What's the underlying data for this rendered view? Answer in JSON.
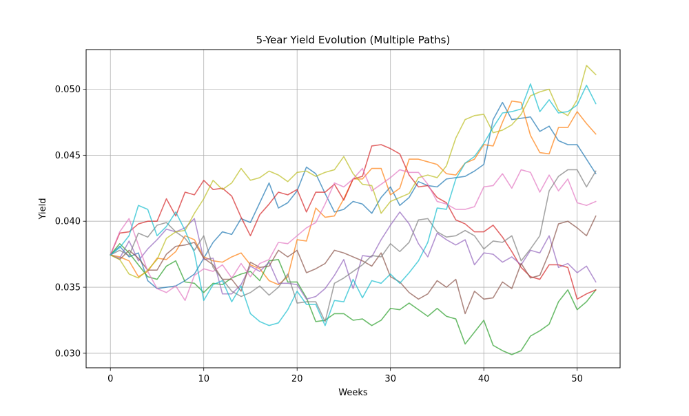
{
  "chart_data": {
    "type": "line",
    "title": "5-Year Yield Evolution (Multiple Paths)",
    "xlabel": "Weeks",
    "ylabel": "Yield",
    "xlim": [
      -2.6,
      54.6
    ],
    "ylim": [
      0.0289,
      0.053
    ],
    "xticks": [
      0,
      10,
      20,
      30,
      40,
      50
    ],
    "yticks": [
      0.03,
      0.035,
      0.04,
      0.045,
      0.05
    ],
    "xtick_labels": [
      "0",
      "10",
      "20",
      "30",
      "40",
      "50"
    ],
    "ytick_labels": [
      "0.030",
      "0.035",
      "0.040",
      "0.045",
      "0.050"
    ],
    "grid": true,
    "legend": "none",
    "line_alpha": 0.7,
    "x": [
      0,
      1,
      2,
      3,
      4,
      5,
      6,
      7,
      8,
      9,
      10,
      11,
      12,
      13,
      14,
      15,
      16,
      17,
      18,
      19,
      20,
      21,
      22,
      23,
      24,
      25,
      26,
      27,
      28,
      29,
      30,
      31,
      32,
      33,
      34,
      35,
      36,
      37,
      38,
      39,
      40,
      41,
      42,
      43,
      44,
      45,
      46,
      47,
      48,
      49,
      50,
      51,
      52
    ],
    "series": [
      {
        "color": "#1f77b4",
        "values": [
          0.03745,
          0.0381,
          0.0373,
          0.0376,
          0.0355,
          0.0349,
          0.035,
          0.0351,
          0.0355,
          0.036,
          0.0372,
          0.0384,
          0.0392,
          0.039,
          0.0402,
          0.0399,
          0.0414,
          0.0429,
          0.041,
          0.0414,
          0.0423,
          0.0441,
          0.0436,
          0.0421,
          0.0407,
          0.0409,
          0.0415,
          0.0413,
          0.0406,
          0.0418,
          0.0426,
          0.0412,
          0.0418,
          0.043,
          0.0427,
          0.0426,
          0.0432,
          0.0433,
          0.0434,
          0.0438,
          0.0443,
          0.0477,
          0.049,
          0.0477,
          0.0478,
          0.0479,
          0.0468,
          0.0472,
          0.0461,
          0.0458,
          0.0458,
          0.0447,
          0.0436
        ]
      },
      {
        "color": "#ff7f0e",
        "values": [
          0.03745,
          0.0373,
          0.037,
          0.0358,
          0.0362,
          0.0372,
          0.0371,
          0.0377,
          0.0389,
          0.0386,
          0.0373,
          0.037,
          0.0369,
          0.0373,
          0.0376,
          0.0367,
          0.0364,
          0.0355,
          0.0352,
          0.0358,
          0.0386,
          0.0385,
          0.041,
          0.0403,
          0.0404,
          0.0417,
          0.0432,
          0.0432,
          0.044,
          0.044,
          0.042,
          0.0425,
          0.0447,
          0.0447,
          0.0445,
          0.0443,
          0.0436,
          0.0435,
          0.0444,
          0.0447,
          0.0458,
          0.0457,
          0.0475,
          0.0491,
          0.049,
          0.0465,
          0.0452,
          0.0451,
          0.0471,
          0.0471,
          0.0483,
          0.0474,
          0.0466
        ]
      },
      {
        "color": "#2ca02c",
        "values": [
          0.03745,
          0.0383,
          0.0376,
          0.0367,
          0.0358,
          0.0356,
          0.0366,
          0.037,
          0.0354,
          0.0353,
          0.0346,
          0.0353,
          0.0352,
          0.0357,
          0.036,
          0.0362,
          0.0355,
          0.037,
          0.0371,
          0.0354,
          0.0354,
          0.0342,
          0.0324,
          0.0325,
          0.033,
          0.033,
          0.0325,
          0.0326,
          0.0321,
          0.0325,
          0.0334,
          0.0333,
          0.0338,
          0.0333,
          0.0328,
          0.0334,
          0.0328,
          0.0326,
          0.0307,
          0.0316,
          0.0325,
          0.0306,
          0.0302,
          0.0299,
          0.0302,
          0.0313,
          0.0317,
          0.0322,
          0.0339,
          0.0348,
          0.0333,
          0.0339,
          0.0348
        ]
      },
      {
        "color": "#d62728",
        "values": [
          0.03745,
          0.0391,
          0.0392,
          0.0398,
          0.04,
          0.04,
          0.0417,
          0.0404,
          0.0422,
          0.042,
          0.0431,
          0.0424,
          0.0425,
          0.0419,
          0.0403,
          0.0389,
          0.0405,
          0.0413,
          0.0422,
          0.042,
          0.0424,
          0.0407,
          0.0422,
          0.0422,
          0.0428,
          0.0416,
          0.0432,
          0.0434,
          0.0457,
          0.0458,
          0.0455,
          0.0451,
          0.0435,
          0.0426,
          0.0427,
          0.0418,
          0.0414,
          0.0401,
          0.0398,
          0.0392,
          0.0392,
          0.0397,
          0.0388,
          0.0377,
          0.0365,
          0.0358,
          0.0356,
          0.0367,
          0.0367,
          0.0365,
          0.0341,
          0.0345,
          0.0348
        ]
      },
      {
        "color": "#9467bd",
        "values": [
          0.03745,
          0.0372,
          0.0385,
          0.037,
          0.0379,
          0.0386,
          0.0394,
          0.0392,
          0.0395,
          0.0402,
          0.0371,
          0.0372,
          0.0345,
          0.0345,
          0.0352,
          0.0366,
          0.0362,
          0.0369,
          0.0353,
          0.0353,
          0.0352,
          0.0341,
          0.0343,
          0.0349,
          0.0359,
          0.0371,
          0.0349,
          0.0374,
          0.0373,
          0.0386,
          0.0397,
          0.0407,
          0.0398,
          0.0383,
          0.0373,
          0.0391,
          0.0386,
          0.0382,
          0.0386,
          0.0367,
          0.0376,
          0.0375,
          0.0369,
          0.0373,
          0.0367,
          0.0378,
          0.0376,
          0.0389,
          0.0365,
          0.0368,
          0.0361,
          0.0366,
          0.0354
        ]
      },
      {
        "color": "#8c564b",
        "values": [
          0.03745,
          0.0371,
          0.0378,
          0.0372,
          0.0363,
          0.0363,
          0.0375,
          0.0381,
          0.0382,
          0.0384,
          0.0372,
          0.0367,
          0.0356,
          0.0356,
          0.0347,
          0.0369,
          0.0365,
          0.0366,
          0.0378,
          0.0373,
          0.0378,
          0.0361,
          0.0364,
          0.0368,
          0.0378,
          0.0376,
          0.0373,
          0.037,
          0.0366,
          0.0376,
          0.0358,
          0.0354,
          0.0346,
          0.0341,
          0.0345,
          0.0355,
          0.035,
          0.0356,
          0.033,
          0.0347,
          0.0341,
          0.0342,
          0.0354,
          0.0349,
          0.0368,
          0.0357,
          0.0359,
          0.0376,
          0.0398,
          0.04,
          0.0395,
          0.0389,
          0.0404
        ]
      },
      {
        "color": "#e377c2",
        "values": [
          0.03745,
          0.0392,
          0.0402,
          0.0382,
          0.0362,
          0.0349,
          0.0346,
          0.0351,
          0.034,
          0.0359,
          0.0364,
          0.0362,
          0.0367,
          0.0357,
          0.0368,
          0.0358,
          0.0368,
          0.0371,
          0.0384,
          0.0383,
          0.0389,
          0.0395,
          0.0399,
          0.0413,
          0.0429,
          0.0426,
          0.0432,
          0.044,
          0.0423,
          0.0428,
          0.0433,
          0.0439,
          0.0437,
          0.0437,
          0.0428,
          0.0415,
          0.0413,
          0.0409,
          0.0409,
          0.0411,
          0.0426,
          0.0427,
          0.0436,
          0.0425,
          0.0439,
          0.0437,
          0.0422,
          0.0435,
          0.0423,
          0.0432,
          0.0414,
          0.0412,
          0.0415
        ]
      },
      {
        "color": "#7f7f7f",
        "values": [
          0.03745,
          0.0378,
          0.0374,
          0.0391,
          0.0388,
          0.0397,
          0.0399,
          0.0392,
          0.0387,
          0.0378,
          0.0389,
          0.0365,
          0.0356,
          0.0347,
          0.0343,
          0.0346,
          0.0351,
          0.0344,
          0.035,
          0.036,
          0.0338,
          0.0339,
          0.0339,
          0.0324,
          0.0353,
          0.0357,
          0.0362,
          0.0367,
          0.0374,
          0.0373,
          0.0383,
          0.0377,
          0.0384,
          0.0401,
          0.0402,
          0.0392,
          0.0388,
          0.0389,
          0.0393,
          0.0389,
          0.0379,
          0.0385,
          0.0384,
          0.0389,
          0.037,
          0.0379,
          0.0389,
          0.0423,
          0.0434,
          0.0439,
          0.0439,
          0.0426,
          0.0438
        ]
      },
      {
        "color": "#bcbd22",
        "values": [
          0.03745,
          0.0371,
          0.036,
          0.0357,
          0.0363,
          0.0371,
          0.0387,
          0.0392,
          0.0393,
          0.0406,
          0.0417,
          0.0431,
          0.0424,
          0.0429,
          0.044,
          0.0431,
          0.0433,
          0.0438,
          0.0435,
          0.043,
          0.0437,
          0.0438,
          0.0434,
          0.0437,
          0.0439,
          0.0449,
          0.0436,
          0.0428,
          0.0427,
          0.0406,
          0.0415,
          0.0418,
          0.0421,
          0.0433,
          0.0435,
          0.0433,
          0.0442,
          0.0463,
          0.0477,
          0.048,
          0.0481,
          0.0467,
          0.0469,
          0.0473,
          0.0481,
          0.0495,
          0.0498,
          0.05,
          0.0484,
          0.048,
          0.0492,
          0.0518,
          0.0511
        ]
      },
      {
        "color": "#17becf",
        "values": [
          0.03745,
          0.038,
          0.0389,
          0.0412,
          0.0409,
          0.0389,
          0.0396,
          0.0407,
          0.0393,
          0.0376,
          0.034,
          0.0352,
          0.0355,
          0.0339,
          0.0351,
          0.033,
          0.0324,
          0.0321,
          0.0323,
          0.0333,
          0.0347,
          0.0337,
          0.0337,
          0.0321,
          0.034,
          0.0339,
          0.0356,
          0.0342,
          0.0355,
          0.0353,
          0.036,
          0.0353,
          0.0361,
          0.037,
          0.0384,
          0.041,
          0.0409,
          0.0432,
          0.0444,
          0.0449,
          0.0459,
          0.0471,
          0.0482,
          0.0483,
          0.0485,
          0.0504,
          0.0483,
          0.0492,
          0.0482,
          0.0483,
          0.0488,
          0.0503,
          0.0489
        ]
      }
    ]
  }
}
